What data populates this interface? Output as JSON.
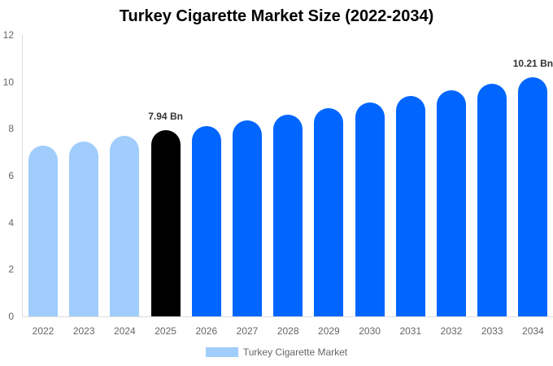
{
  "chart_data": {
    "type": "bar",
    "title": "Turkey Cigarette Market Size (2022-2034)",
    "xlabel": "",
    "ylabel": "",
    "ylim": [
      0,
      12
    ],
    "yticks": [
      0,
      2,
      4,
      6,
      8,
      10,
      12
    ],
    "grid": false,
    "legend_position": "bottom",
    "categories": [
      "2022",
      "2023",
      "2024",
      "2025",
      "2026",
      "2027",
      "2028",
      "2029",
      "2030",
      "2031",
      "2032",
      "2033",
      "2034"
    ],
    "series": [
      {
        "name": "Turkey Cigarette Market",
        "values": [
          7.28,
          7.47,
          7.71,
          7.94,
          8.12,
          8.37,
          8.6,
          8.87,
          9.12,
          9.39,
          9.63,
          9.92,
          10.21
        ]
      }
    ],
    "bar_colors": [
      "#a0cdfc",
      "#a0cdfc",
      "#a0cdfc",
      "#000000",
      "#0066ff",
      "#0066ff",
      "#0066ff",
      "#0066ff",
      "#0066ff",
      "#0066ff",
      "#0066ff",
      "#0066ff",
      "#0066ff"
    ],
    "annotations": [
      {
        "category": "2025",
        "text": "7.94 Bn"
      },
      {
        "category": "2034",
        "text": "10.21 Bn"
      }
    ]
  },
  "legend": {
    "label": "Turkey Cigarette Market",
    "color": "#a0cdfc"
  }
}
